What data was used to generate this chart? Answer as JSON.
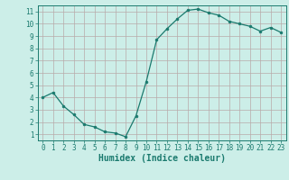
{
  "x": [
    0,
    1,
    2,
    3,
    4,
    5,
    6,
    7,
    8,
    9,
    10,
    11,
    12,
    13,
    14,
    15,
    16,
    17,
    18,
    19,
    20,
    21,
    22,
    23
  ],
  "y": [
    4.0,
    4.4,
    3.3,
    2.6,
    1.8,
    1.6,
    1.2,
    1.1,
    0.8,
    2.5,
    5.3,
    8.7,
    9.6,
    10.4,
    11.1,
    11.2,
    10.9,
    10.7,
    10.2,
    10.0,
    9.8,
    9.4,
    9.7,
    9.3
  ],
  "line_color": "#1a7a6e",
  "marker": "o",
  "marker_size": 2.0,
  "bg_color": "#cceee8",
  "grid_color": "#b8aaaa",
  "xlabel": "Humidex (Indice chaleur)",
  "xlim": [
    -0.5,
    23.5
  ],
  "ylim": [
    0.5,
    11.5
  ],
  "yticks": [
    1,
    2,
    3,
    4,
    5,
    6,
    7,
    8,
    9,
    10,
    11
  ],
  "xticks": [
    0,
    1,
    2,
    3,
    4,
    5,
    6,
    7,
    8,
    9,
    10,
    11,
    12,
    13,
    14,
    15,
    16,
    17,
    18,
    19,
    20,
    21,
    22,
    23
  ],
  "tick_fontsize": 5.5,
  "xlabel_fontsize": 7.0,
  "axis_color": "#1a7a6e",
  "line_width": 0.9
}
